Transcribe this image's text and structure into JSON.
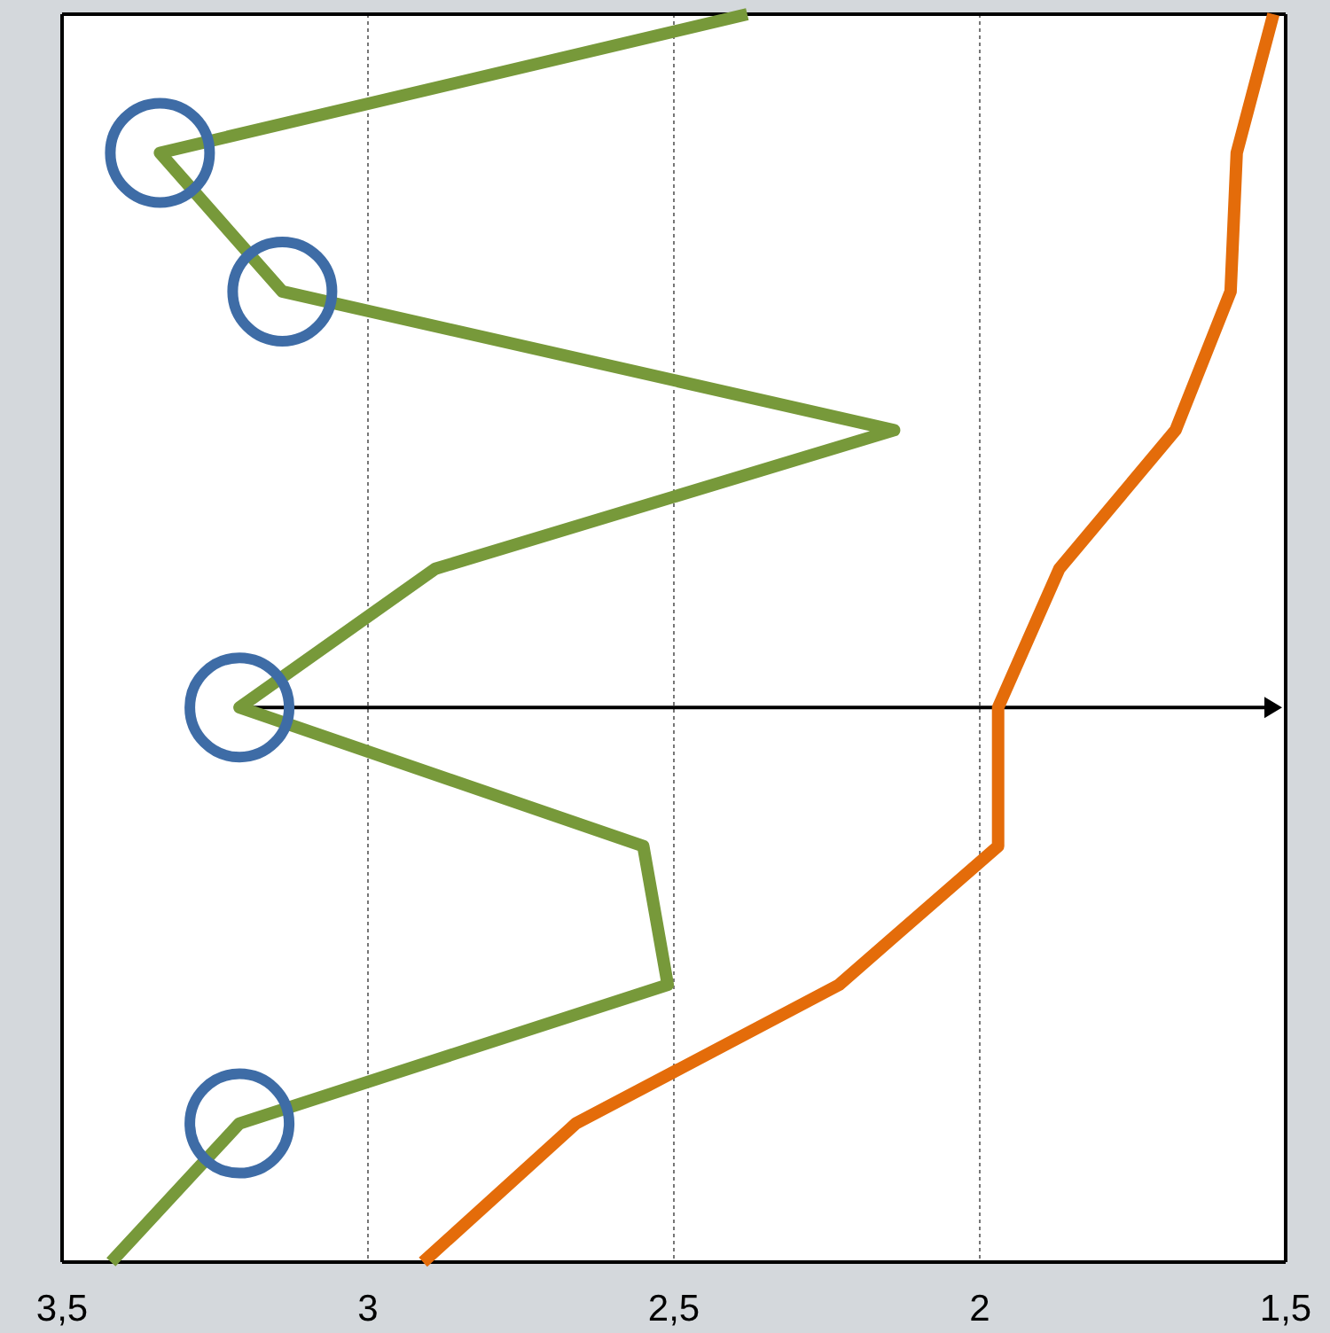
{
  "chart_data": {
    "type": "line",
    "orientation": "horizontal",
    "categories": [
      null,
      null,
      null,
      null,
      null,
      null,
      null,
      null,
      null,
      null
    ],
    "xlim": [
      3.5,
      1.5
    ],
    "xticks": [
      {
        "value": 3.5,
        "label": "3,5"
      },
      {
        "value": 3,
        "label": "3"
      },
      {
        "value": 2.5,
        "label": "2,5"
      },
      {
        "value": 2,
        "label": "2"
      },
      {
        "value": 1.5,
        "label": "1,5"
      }
    ],
    "grid": "x",
    "tick_labels": "x",
    "marker": "none",
    "line_style": "solid",
    "series": [
      {
        "color": "#77993a",
        "values": [
          2.38,
          3.34,
          3.14,
          2.14,
          2.89,
          3.21,
          2.55,
          2.51,
          3.21,
          3.42
        ]
      },
      {
        "color": "#e46c0a",
        "values": [
          1.52,
          1.58,
          1.59,
          1.68,
          1.87,
          1.97,
          1.97,
          2.23,
          2.66,
          2.91
        ]
      },
      {
        "type": "scatter",
        "marker": "circle",
        "color": "#3e6ca6",
        "values": [
          null,
          3.34,
          3.14,
          null,
          null,
          3.21,
          null,
          null,
          3.21,
          null
        ]
      }
    ]
  }
}
